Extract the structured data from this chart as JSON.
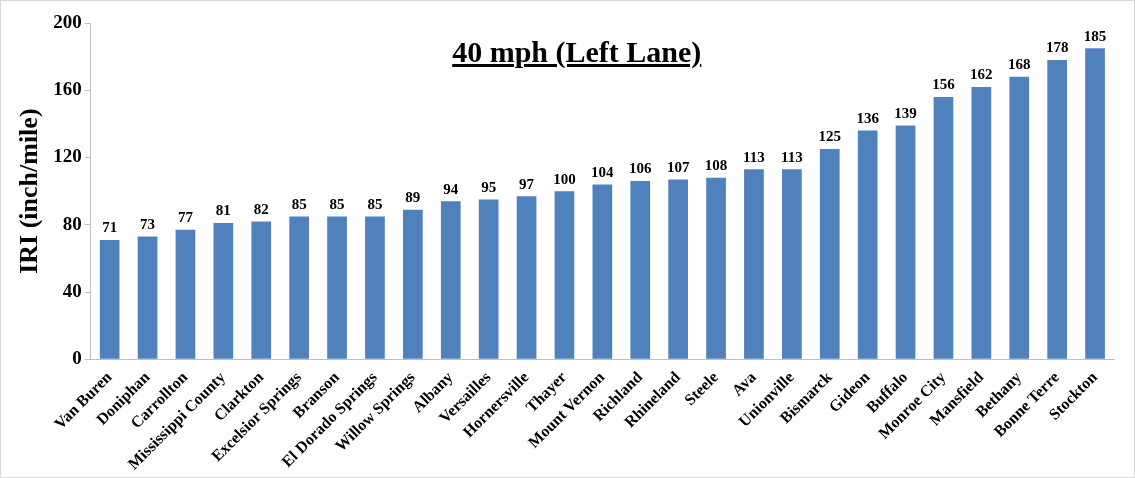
{
  "chart_data": {
    "type": "bar",
    "title": "40 mph (Left Lane)",
    "ylabel": "IRI (inch/mile)",
    "categories": [
      "Van Buren",
      "Doniphan",
      "Carrollton",
      "Mississippi County",
      "Clarkton",
      "Excelsior Springs",
      "Branson",
      "El Dorado Springs",
      "Willow Springs",
      "Albany",
      "Versailles",
      "Hornersville",
      "Thayer",
      "Mount Vernon",
      "Richland",
      "Rhineland",
      "Steele",
      "Ava",
      "Unionville",
      "Bismarck",
      "Gideon",
      "Buffalo",
      "Monroe City",
      "Mansfield",
      "Bethany",
      "Bonne Terre",
      "Stockton"
    ],
    "values": [
      71,
      73,
      77,
      81,
      82,
      85,
      85,
      85,
      89,
      94,
      95,
      97,
      100,
      104,
      106,
      107,
      108,
      113,
      113,
      125,
      136,
      139,
      156,
      162,
      168,
      178,
      185
    ],
    "color": "#4f81bd",
    "ylim": [
      0,
      200
    ],
    "yticks": [
      0,
      40,
      80,
      120,
      160,
      200
    ],
    "grid": false,
    "legend": false,
    "data_labels": true
  }
}
